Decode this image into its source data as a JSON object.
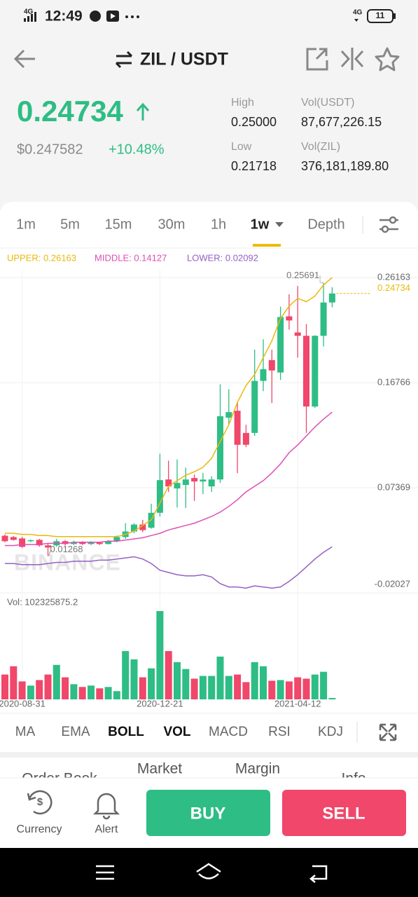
{
  "status_bar": {
    "time": "12:49",
    "network": "4G",
    "network2": "4G",
    "battery": "11"
  },
  "header": {
    "pair": "ZIL / USDT"
  },
  "ticker": {
    "price": "0.24734",
    "fiat": "$0.247582",
    "change": "+10.48%",
    "high_label": "High",
    "high": "0.25000",
    "low_label": "Low",
    "low": "0.21718",
    "vol_usdt_label": "Vol(USDT)",
    "vol_usdt": "87,677,226.15",
    "vol_zil_label": "Vol(ZIL)",
    "vol_zil": "376,181,189.80"
  },
  "intervals": {
    "items": [
      "1m",
      "5m",
      "15m",
      "30m",
      "1h",
      "1w",
      "Depth"
    ],
    "selected": "1w"
  },
  "chart_data": {
    "type": "candlestick",
    "categories": [
      null,
      null,
      "2020-08-31",
      null,
      null,
      null,
      null,
      null,
      null,
      null,
      null,
      null,
      null,
      null,
      null,
      null,
      null,
      null,
      "2020-12-21",
      null,
      null,
      null,
      null,
      null,
      null,
      null,
      null,
      null,
      null,
      null,
      null,
      null,
      null,
      null,
      "2021-04-12",
      null,
      null,
      null,
      null
    ],
    "open": [
      0.0308,
      0.0296,
      0.0284,
      0.0259,
      0.0271,
      0.0222,
      0.0222,
      0.0259,
      0.0234,
      0.025,
      0.0234,
      0.0246,
      0.0234,
      0.0259,
      0.0296,
      0.0346,
      0.0408,
      0.038,
      0.0513,
      0.0811,
      0.0731,
      0.0762,
      0.0824,
      0.0793,
      0.0749,
      0.0811,
      0.1363,
      0.1425,
      0.1227,
      0.1227,
      0.1692,
      0.1878,
      0.1767,
      0.2269,
      0.2125,
      0.2095,
      0.1463,
      0.2095,
      0.2393
    ],
    "high": [
      0.032,
      0.0305,
      0.03,
      0.0275,
      0.028,
      0.024,
      0.028,
      0.027,
      0.0265,
      0.026,
      0.026,
      0.0255,
      0.027,
      0.031,
      0.042,
      0.042,
      0.045,
      0.0594,
      0.1041,
      0.0979,
      0.099,
      0.0917,
      0.0855,
      0.087,
      0.084,
      0.1661,
      0.1618,
      0.15,
      0.13,
      0.1971,
      0.2064,
      0.1971,
      0.2356,
      0.2467,
      0.254,
      0.22,
      0.21,
      0.25691,
      0.253
    ],
    "low": [
      0.025,
      0.0265,
      0.02,
      0.025,
      0.021,
      0.01268,
      0.021,
      0.022,
      0.0225,
      0.0225,
      0.0225,
      0.0225,
      0.023,
      0.025,
      0.028,
      0.033,
      0.034,
      0.037,
      0.048,
      0.07,
      0.056,
      0.0557,
      0.0619,
      0.068,
      0.07,
      0.078,
      0.13,
      0.0867,
      0.11,
      0.12,
      0.16,
      0.1494,
      0.17,
      0.215,
      0.19,
      0.1227,
      0.145,
      0.2,
      0.235
    ],
    "close": [
      0.0259,
      0.0271,
      0.0209,
      0.0268,
      0.0222,
      0.0203,
      0.0259,
      0.0234,
      0.025,
      0.0234,
      0.0246,
      0.0234,
      0.0259,
      0.0296,
      0.0346,
      0.0408,
      0.0358,
      0.0513,
      0.0805,
      0.0749,
      0.078,
      0.0811,
      0.0793,
      0.081,
      0.0811,
      0.1376,
      0.1413,
      0.1121,
      0.1121,
      0.1692,
      0.1797,
      0.1785,
      0.2263,
      0.2232,
      0.2095,
      0.1463,
      0.2095,
      0.2393,
      0.24734
    ],
    "up_color": "#2ebd85",
    "down_color": "#f0476a",
    "series": [
      {
        "label": "UPPER: 0.26163",
        "color": "#e8b90c",
        "values": [
          0.033,
          0.033,
          0.032,
          0.032,
          0.031,
          0.031,
          0.03,
          0.03,
          0.03,
          0.03,
          0.03,
          0.03,
          0.03,
          0.03,
          0.032,
          0.035,
          0.04,
          0.045,
          0.06,
          0.075,
          0.08,
          0.085,
          0.088,
          0.092,
          0.1,
          0.115,
          0.13,
          0.15,
          0.165,
          0.175,
          0.19,
          0.205,
          0.225,
          0.236,
          0.243,
          0.24,
          0.245,
          0.255,
          0.26163
        ]
      },
      {
        "label": "MIDDLE: 0.14127",
        "color": "#dd4fb5",
        "values": [
          0.022,
          0.022,
          0.023,
          0.023,
          0.023,
          0.024,
          0.024,
          0.024,
          0.025,
          0.025,
          0.025,
          0.025,
          0.026,
          0.026,
          0.027,
          0.028,
          0.029,
          0.031,
          0.033,
          0.036,
          0.038,
          0.04,
          0.042,
          0.045,
          0.048,
          0.052,
          0.057,
          0.063,
          0.07,
          0.075,
          0.08,
          0.087,
          0.095,
          0.105,
          0.112,
          0.12,
          0.128,
          0.135,
          0.14127
        ]
      },
      {
        "label": "LOWER: 0.02092",
        "color": "#9460c4",
        "values": [
          0.006,
          0.006,
          0.005,
          0.005,
          0.005,
          0.006,
          0.007,
          0.007,
          0.008,
          0.008,
          0.008,
          0.009,
          0.009,
          0.01,
          0.011,
          0.012,
          0.01,
          0.006,
          0.0,
          -0.002,
          -0.004,
          -0.005,
          -0.005,
          -0.004,
          -0.006,
          -0.012,
          -0.015,
          -0.015,
          -0.016,
          -0.014,
          -0.015,
          -0.016,
          -0.015,
          -0.01,
          -0.004,
          0.003,
          0.01,
          0.016,
          0.02092
        ]
      }
    ],
    "ylim": [
      -0.0215,
      0.2685
    ],
    "yticks": [
      0.26163,
      0.16766,
      0.07369,
      -0.02027
    ],
    "grid": true,
    "last_price": 0.24734,
    "max_marker": 0.25691,
    "min_marker": 0.01268,
    "watermark": "BINANCE",
    "volume_label": "Vol: 102325875.2",
    "volume": [
      36000000,
      48000000,
      26000000,
      20000000,
      28000000,
      36000000,
      50000000,
      32000000,
      22000000,
      18000000,
      20000000,
      16000000,
      18000000,
      12000000,
      70000000,
      58000000,
      32000000,
      45000000,
      128000000,
      70000000,
      54000000,
      44000000,
      30000000,
      34000000,
      34000000,
      62000000,
      34000000,
      36000000,
      25000000,
      54000000,
      48000000,
      27000000,
      28000000,
      26000000,
      32000000,
      30000000,
      36000000,
      40000000,
      2000000
    ],
    "volume_ylim": [
      0,
      130000000
    ]
  },
  "indicators": {
    "items": [
      "MA",
      "EMA",
      "BOLL",
      "VOL",
      "MACD",
      "RSI",
      "KDJ"
    ],
    "active": [
      "BOLL",
      "VOL"
    ]
  },
  "sheet_tabs": [
    "Order Book",
    "Market",
    "Margin",
    "Info"
  ],
  "bottom_bar": {
    "currency": "Currency",
    "alert": "Alert",
    "buy": "BUY",
    "sell": "SELL"
  }
}
